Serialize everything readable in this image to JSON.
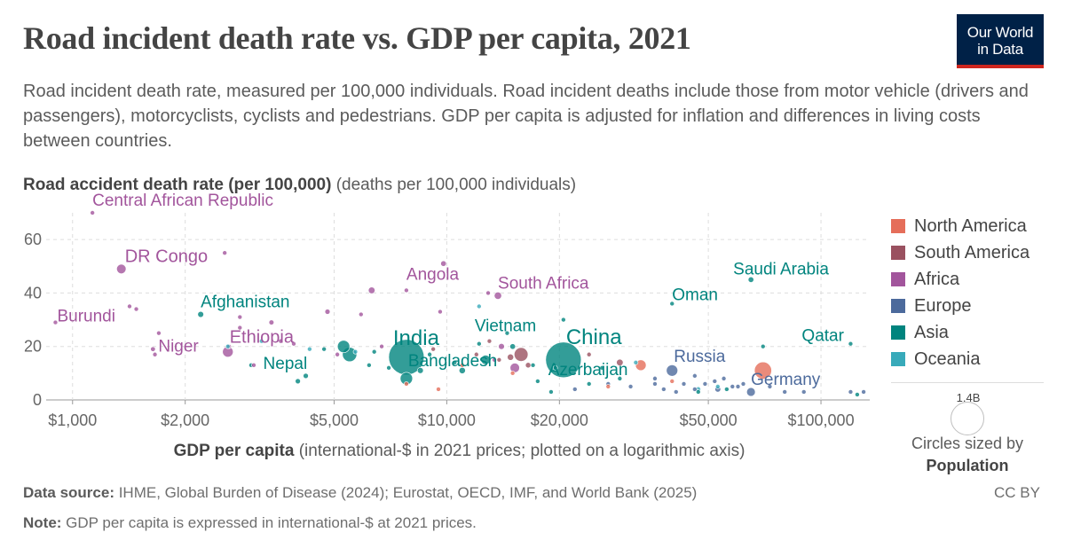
{
  "title": "Road incident death rate vs. GDP per capita, 2021",
  "logo": {
    "line1": "Our World",
    "line2": "in Data"
  },
  "subtitle": "Road incident death rate, measured per 100,000 individuals. Road incident deaths include those from motor vehicle (drivers and passengers), motorcyclists, cyclists and pedestrians. GDP per capita is adjusted for inflation and differences in living costs between countries.",
  "y_axis": {
    "title_bold": "Road accident death rate (per 100,000)",
    "title_rest": " (deaths per 100,000 individuals)"
  },
  "x_axis": {
    "title_bold": "GDP per capita",
    "title_rest": " (international-$ in 2021 prices; plotted on a logarithmic axis)"
  },
  "size_legend": {
    "value": "1.4B",
    "note_line1": "Circles sized by",
    "note_line2": "Population"
  },
  "footer": {
    "source_label": "Data source:",
    "source_text": " IHME, Global Burden of Disease (2024); Eurostat, OECD, IMF, and World Bank (2025)",
    "note_label": "Note:",
    "note_text": " GDP per capita is expressed in international-$ at 2021 prices.",
    "license": "CC BY"
  },
  "colors": {
    "North America": "#e56e5a",
    "South America": "#9a5160",
    "Africa": "#a2559c",
    "Europe": "#4c6a9c",
    "Asia": "#00847e",
    "Oceania": "#38aaba"
  },
  "chart_data": {
    "type": "scatter",
    "x_scale": "log",
    "xlim": [
      850,
      135000
    ],
    "ylim": [
      0,
      70
    ],
    "grid": true,
    "legend_position": "right",
    "x_ticks": [
      {
        "value": 1000,
        "label": "$1,000"
      },
      {
        "value": 2000,
        "label": "$2,000"
      },
      {
        "value": 5000,
        "label": "$5,000"
      },
      {
        "value": 10000,
        "label": "$10,000"
      },
      {
        "value": 20000,
        "label": "$20,000"
      },
      {
        "value": 50000,
        "label": "$50,000"
      },
      {
        "value": 100000,
        "label": "$100,000"
      }
    ],
    "y_ticks": [
      0,
      20,
      40,
      60
    ],
    "series": [
      {
        "name": "North America",
        "points": [
          [
            70000,
            11,
            330
          ],
          [
            33000,
            13,
            127
          ],
          [
            9500,
            4,
            20
          ],
          [
            7800,
            6,
            10
          ],
          [
            15000,
            10,
            5
          ],
          [
            27000,
            5,
            3
          ],
          [
            40000,
            7,
            2
          ],
          [
            11000,
            13,
            6
          ]
        ]
      },
      {
        "name": "South America",
        "points": [
          [
            15800,
            17,
            214
          ],
          [
            14800,
            16,
            45
          ],
          [
            13000,
            22,
            7
          ],
          [
            29000,
            14,
            50
          ],
          [
            16500,
            13,
            33
          ],
          [
            24000,
            17,
            20
          ],
          [
            12000,
            17,
            11
          ],
          [
            9200,
            19,
            18
          ],
          [
            13800,
            15,
            3
          ]
        ]
      },
      {
        "name": "Africa",
        "points": [
          [
            1130,
            70,
            5
          ],
          [
            1350,
            49,
            100
          ],
          [
            1420,
            35,
            13
          ],
          [
            1480,
            34,
            15
          ],
          [
            900,
            29,
            13
          ],
          [
            1640,
            19,
            26
          ],
          [
            1700,
            25,
            12
          ],
          [
            1660,
            17,
            8
          ],
          [
            2550,
            55,
            10
          ],
          [
            2600,
            18,
            126
          ],
          [
            3050,
            13,
            2
          ],
          [
            2800,
            31,
            20
          ],
          [
            2620,
            20,
            19
          ],
          [
            2800,
            27,
            10
          ],
          [
            3400,
            29,
            28
          ],
          [
            3600,
            22,
            4
          ],
          [
            4800,
            33,
            30
          ],
          [
            6300,
            41,
            50
          ],
          [
            7800,
            41,
            12
          ],
          [
            9800,
            51,
            35
          ],
          [
            9600,
            33,
            16
          ],
          [
            12900,
            40,
            4
          ],
          [
            13700,
            39,
            60
          ],
          [
            13400,
            15,
            10
          ],
          [
            15200,
            12,
            100
          ],
          [
            14000,
            20,
            40
          ],
          [
            5100,
            17,
            9
          ],
          [
            5900,
            32,
            9
          ],
          [
            6700,
            20,
            6
          ],
          [
            3900,
            21,
            8
          ]
        ]
      },
      {
        "name": "Europe",
        "points": [
          [
            40000,
            11,
            145
          ],
          [
            55000,
            8,
            10
          ],
          [
            60000,
            5,
            12
          ],
          [
            65000,
            3,
            84
          ],
          [
            46000,
            4,
            10
          ],
          [
            49000,
            6,
            9
          ],
          [
            53000,
            4,
            38
          ],
          [
            58000,
            5,
            10
          ],
          [
            52000,
            7,
            5
          ],
          [
            62000,
            6,
            6
          ],
          [
            80000,
            3,
            6
          ],
          [
            90000,
            3,
            5
          ],
          [
            36000,
            6,
            6
          ],
          [
            43000,
            6,
            8
          ],
          [
            46000,
            9,
            10
          ],
          [
            120000,
            3,
            1
          ],
          [
            130000,
            3,
            1
          ],
          [
            31000,
            5,
            4
          ],
          [
            36000,
            8,
            3
          ],
          [
            38000,
            4,
            2
          ],
          [
            41000,
            3,
            2
          ],
          [
            73000,
            5,
            6
          ],
          [
            27000,
            6,
            4
          ],
          [
            22000,
            4,
            6
          ]
        ]
      },
      {
        "name": "Asia",
        "points": [
          [
            7800,
            16,
            1400
          ],
          [
            20500,
            15,
            1410
          ],
          [
            5300,
            20,
            170
          ],
          [
            7800,
            8,
            170
          ],
          [
            5500,
            17,
            230
          ],
          [
            4200,
            9,
            30
          ],
          [
            12200,
            21,
            20
          ],
          [
            12700,
            15,
            100
          ],
          [
            15000,
            20,
            35
          ],
          [
            19500,
            12,
            10
          ],
          [
            20500,
            30,
            10
          ],
          [
            17000,
            13,
            2
          ],
          [
            40000,
            36,
            5
          ],
          [
            65000,
            45,
            35
          ],
          [
            70000,
            20,
            3
          ],
          [
            120000,
            21,
            3
          ],
          [
            47000,
            3,
            8
          ],
          [
            6200,
            13,
            5
          ],
          [
            8500,
            11,
            40
          ],
          [
            7000,
            12,
            12
          ],
          [
            10500,
            14,
            8
          ],
          [
            17500,
            7,
            18
          ],
          [
            19000,
            3,
            5
          ],
          [
            2200,
            32,
            40
          ],
          [
            3000,
            13,
            7
          ],
          [
            4000,
            7,
            30
          ],
          [
            4700,
            19,
            7
          ],
          [
            6400,
            18,
            6
          ],
          [
            9000,
            17,
            12
          ],
          [
            11000,
            11,
            45
          ],
          [
            14500,
            25,
            10
          ],
          [
            24000,
            6,
            3
          ],
          [
            26000,
            12,
            9
          ],
          [
            125000,
            2,
            3
          ],
          [
            29000,
            8,
            10
          ],
          [
            56000,
            4,
            8
          ]
        ]
      },
      {
        "name": "Oceania",
        "points": [
          [
            12200,
            35,
            1
          ],
          [
            2600,
            20,
            1
          ],
          [
            4300,
            19,
            1
          ],
          [
            5700,
            18,
            1
          ],
          [
            53000,
            5,
            5
          ],
          [
            47000,
            4,
            26
          ],
          [
            32000,
            14,
            1
          ],
          [
            3200,
            22,
            1
          ]
        ]
      }
    ],
    "annotations": [
      {
        "text": "Central African Republic",
        "x": 1130,
        "y": 70,
        "series": "Africa"
      },
      {
        "text": "DR Congo",
        "x": 1350,
        "y": 49,
        "series": "Africa"
      },
      {
        "text": "Burundi",
        "x": 900,
        "y": 29,
        "series": "Africa"
      },
      {
        "text": "Niger",
        "x": 1640,
        "y": 19,
        "series": "Africa"
      },
      {
        "text": "Ethiopia",
        "x": 2600,
        "y": 18,
        "series": "Africa"
      },
      {
        "text": "Angola",
        "x": 7800,
        "y": 41,
        "series": "Africa"
      },
      {
        "text": "South Africa",
        "x": 13700,
        "y": 39,
        "series": "Africa"
      },
      {
        "text": "Afghanistan",
        "x": 2200,
        "y": 32,
        "series": "Asia"
      },
      {
        "text": "India",
        "x": 7800,
        "y": 16,
        "series": "Asia"
      },
      {
        "text": "Nepal",
        "x": 4200,
        "y": 9,
        "series": "Asia"
      },
      {
        "text": "Bangladesh",
        "x": 7800,
        "y": 8,
        "series": "Asia"
      },
      {
        "text": "Vietnam",
        "x": 12200,
        "y": 21,
        "series": "Asia"
      },
      {
        "text": "China",
        "x": 20500,
        "y": 15,
        "series": "Asia"
      },
      {
        "text": "Azerbaijan",
        "x": 19500,
        "y": 12,
        "series": "Asia"
      },
      {
        "text": "Oman",
        "x": 40000,
        "y": 36,
        "series": "Asia"
      },
      {
        "text": "Saudi Arabia",
        "x": 65000,
        "y": 45,
        "series": "Asia"
      },
      {
        "text": "Qatar",
        "x": 120000,
        "y": 21,
        "series": "Asia"
      },
      {
        "text": "Russia",
        "x": 40000,
        "y": 11,
        "series": "Europe"
      },
      {
        "text": "Germany",
        "x": 65000,
        "y": 3,
        "series": "Europe"
      }
    ]
  }
}
